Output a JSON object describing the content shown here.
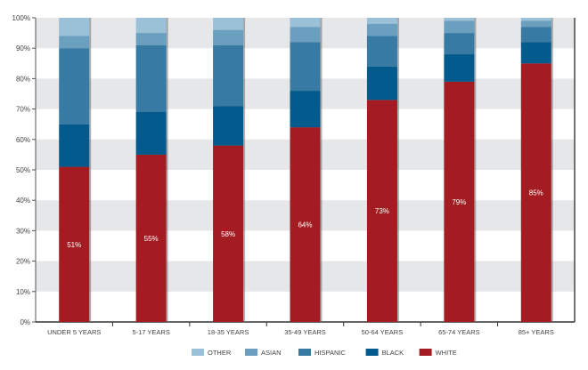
{
  "chart_data": {
    "type": "bar",
    "stacked": true,
    "orientation": "vertical",
    "categories": [
      "UNDER 5 YEARS",
      "5-17 YEARS",
      "18-35 YEARS",
      "35-49 YEARS",
      "50-64 YEARS",
      "65-74 YEARS",
      "85+ YEARS"
    ],
    "series": [
      {
        "name": "WHITE",
        "color": "#a31c22",
        "values": [
          51,
          55,
          58,
          64,
          73,
          79,
          85
        ],
        "labels": [
          "51%",
          "55%",
          "58%",
          "64%",
          "73%",
          "79%",
          "85%"
        ]
      },
      {
        "name": "BLACK",
        "color": "#035a8c",
        "values": [
          14,
          14,
          13,
          12,
          11,
          9,
          7
        ]
      },
      {
        "name": "HISPANIC",
        "color": "#377ba5",
        "values": [
          25,
          22,
          20,
          16,
          10,
          7,
          5
        ]
      },
      {
        "name": "ASIAN",
        "color": "#6a9fc0",
        "values": [
          4,
          4,
          5,
          5,
          4,
          4,
          2
        ]
      },
      {
        "name": "OTHER",
        "color": "#9bc1d9",
        "values": [
          6,
          5,
          4,
          3,
          2,
          1,
          1
        ]
      }
    ],
    "legend_order": [
      "OTHER",
      "ASIAN",
      "HISPANIC",
      "BLACK",
      "WHITE"
    ],
    "yticks": [
      "0%",
      "10%",
      "20%",
      "30%",
      "40%",
      "50%",
      "60%",
      "70%",
      "80%",
      "90%",
      "100%"
    ],
    "ylim": [
      0,
      100
    ],
    "grid": "alternating horizontal bands",
    "legend_position": "bottom",
    "title": "",
    "xlabel": "",
    "ylabel": ""
  }
}
